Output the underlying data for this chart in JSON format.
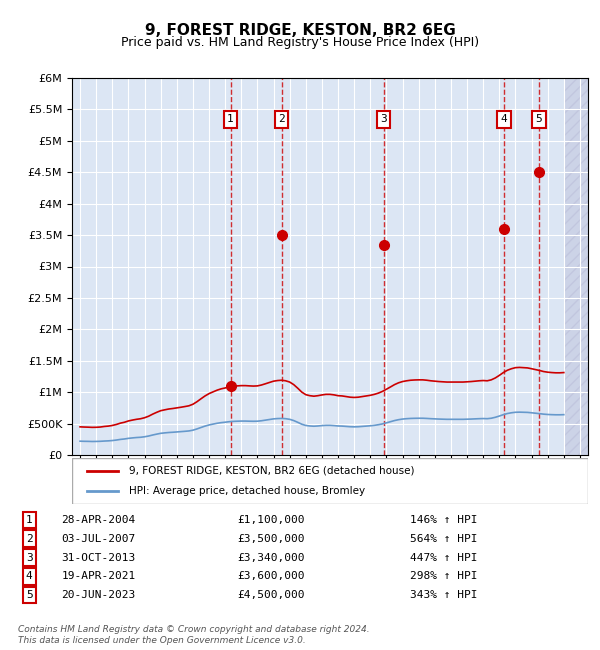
{
  "title": "9, FOREST RIDGE, KESTON, BR2 6EG",
  "subtitle": "Price paid vs. HM Land Registry's House Price Index (HPI)",
  "legend_line1": "9, FOREST RIDGE, KESTON, BR2 6EG (detached house)",
  "legend_line2": "HPI: Average price, detached house, Bromley",
  "footer": "Contains HM Land Registry data © Crown copyright and database right 2024.\nThis data is licensed under the Open Government Licence v3.0.",
  "xlim": [
    1994.5,
    2026.5
  ],
  "ylim": [
    0,
    6000000
  ],
  "yticks": [
    0,
    500000,
    1000000,
    1500000,
    2000000,
    2500000,
    3000000,
    3500000,
    4000000,
    4500000,
    5000000,
    5500000,
    6000000
  ],
  "ytick_labels": [
    "£0",
    "£500K",
    "£1M",
    "£1.5M",
    "£2M",
    "£2.5M",
    "£3M",
    "£3.5M",
    "£4M",
    "£4.5M",
    "£5M",
    "£5.5M",
    "£6M"
  ],
  "sale_years": [
    2004.33,
    2007.5,
    2013.83,
    2021.3,
    2023.46
  ],
  "sale_prices": [
    1100000,
    3500000,
    3340000,
    3600000,
    4500000
  ],
  "sale_labels": [
    "1",
    "2",
    "3",
    "4",
    "5"
  ],
  "sale_dates": [
    "28-APR-2004",
    "03-JUL-2007",
    "31-OCT-2013",
    "19-APR-2021",
    "20-JUN-2023"
  ],
  "sale_percents": [
    "146% ↑ HPI",
    "564% ↑ HPI",
    "447% ↑ HPI",
    "298% ↑ HPI",
    "343% ↑ HPI"
  ],
  "hpi_color": "#6699cc",
  "price_color": "#cc0000",
  "bg_color": "#dce6f4",
  "hatch_color": "#bbbbcc",
  "box_color": "#cc0000",
  "grid_color": "#ffffff",
  "future_start": 2025.0,
  "hpi_data": {
    "years": [
      1995,
      1995.25,
      1995.5,
      1995.75,
      1996,
      1996.25,
      1996.5,
      1996.75,
      1997,
      1997.25,
      1997.5,
      1997.75,
      1998,
      1998.25,
      1998.5,
      1998.75,
      1999,
      1999.25,
      1999.5,
      1999.75,
      2000,
      2000.25,
      2000.5,
      2000.75,
      2001,
      2001.25,
      2001.5,
      2001.75,
      2002,
      2002.25,
      2002.5,
      2002.75,
      2003,
      2003.25,
      2003.5,
      2003.75,
      2004,
      2004.25,
      2004.5,
      2004.75,
      2005,
      2005.25,
      2005.5,
      2005.75,
      2006,
      2006.25,
      2006.5,
      2006.75,
      2007,
      2007.25,
      2007.5,
      2007.75,
      2008,
      2008.25,
      2008.5,
      2008.75,
      2009,
      2009.25,
      2009.5,
      2009.75,
      2010,
      2010.25,
      2010.5,
      2010.75,
      2011,
      2011.25,
      2011.5,
      2011.75,
      2012,
      2012.25,
      2012.5,
      2012.75,
      2013,
      2013.25,
      2013.5,
      2013.75,
      2014,
      2014.25,
      2014.5,
      2014.75,
      2015,
      2015.25,
      2015.5,
      2015.75,
      2016,
      2016.25,
      2016.5,
      2016.75,
      2017,
      2017.25,
      2017.5,
      2017.75,
      2018,
      2018.25,
      2018.5,
      2018.75,
      2019,
      2019.25,
      2019.5,
      2019.75,
      2020,
      2020.25,
      2020.5,
      2020.75,
      2021,
      2021.25,
      2021.5,
      2021.75,
      2022,
      2022.25,
      2022.5,
      2022.75,
      2023,
      2023.25,
      2023.5,
      2023.75,
      2024,
      2024.25,
      2024.5,
      2024.75,
      2025
    ],
    "values": [
      220000,
      218000,
      217000,
      215000,
      216000,
      218000,
      222000,
      225000,
      230000,
      238000,
      248000,
      255000,
      265000,
      272000,
      278000,
      282000,
      290000,
      302000,
      318000,
      332000,
      345000,
      352000,
      358000,
      362000,
      367000,
      372000,
      377000,
      383000,
      395000,
      415000,
      438000,
      460000,
      478000,
      492000,
      505000,
      515000,
      522000,
      530000,
      535000,
      538000,
      540000,
      540000,
      538000,
      537000,
      538000,
      545000,
      555000,
      565000,
      575000,
      580000,
      582000,
      578000,
      568000,
      548000,
      520000,
      490000,
      470000,
      462000,
      458000,
      462000,
      468000,
      472000,
      472000,
      468000,
      462000,
      460000,
      455000,
      450000,
      448000,
      450000,
      455000,
      460000,
      465000,
      472000,
      482000,
      495000,
      512000,
      530000,
      548000,
      562000,
      572000,
      578000,
      582000,
      584000,
      585000,
      585000,
      582000,
      578000,
      575000,
      572000,
      570000,
      568000,
      568000,
      568000,
      568000,
      568000,
      570000,
      572000,
      575000,
      578000,
      580000,
      578000,
      585000,
      600000,
      620000,
      642000,
      660000,
      672000,
      680000,
      682000,
      680000,
      678000,
      672000,
      665000,
      658000,
      650000,
      645000,
      642000,
      640000,
      640000,
      642000
    ]
  },
  "property_hpi_data": {
    "years": [
      1995,
      1995.25,
      1995.5,
      1995.75,
      1996,
      1996.25,
      1996.5,
      1996.75,
      1997,
      1997.25,
      1997.5,
      1997.75,
      1998,
      1998.25,
      1998.5,
      1998.75,
      1999,
      1999.25,
      1999.5,
      1999.75,
      2000,
      2000.25,
      2000.5,
      2000.75,
      2001,
      2001.25,
      2001.5,
      2001.75,
      2002,
      2002.25,
      2002.5,
      2002.75,
      2003,
      2003.25,
      2003.5,
      2003.75,
      2004,
      2004.25,
      2004.5,
      2004.75,
      2005,
      2005.25,
      2005.5,
      2005.75,
      2006,
      2006.25,
      2006.5,
      2006.75,
      2007,
      2007.25,
      2007.5,
      2007.75,
      2008,
      2008.25,
      2008.5,
      2008.75,
      2009,
      2009.25,
      2009.5,
      2009.75,
      2010,
      2010.25,
      2010.5,
      2010.75,
      2011,
      2011.25,
      2011.5,
      2011.75,
      2012,
      2012.25,
      2012.5,
      2012.75,
      2013,
      2013.25,
      2013.5,
      2013.75,
      2014,
      2014.25,
      2014.5,
      2014.75,
      2015,
      2015.25,
      2015.5,
      2015.75,
      2016,
      2016.25,
      2016.5,
      2016.75,
      2017,
      2017.25,
      2017.5,
      2017.75,
      2018,
      2018.25,
      2018.5,
      2018.75,
      2019,
      2019.25,
      2019.5,
      2019.75,
      2020,
      2020.25,
      2020.5,
      2020.75,
      2021,
      2021.25,
      2021.5,
      2021.75,
      2022,
      2022.25,
      2022.5,
      2022.75,
      2023,
      2023.25,
      2023.5,
      2023.75,
      2024,
      2024.25,
      2024.5,
      2024.75,
      2025
    ],
    "values": [
      448000,
      445000,
      443000,
      440000,
      441000,
      445000,
      454000,
      460000,
      470000,
      486000,
      507000,
      521000,
      542000,
      556000,
      568000,
      577000,
      593000,
      617000,
      650000,
      679000,
      705000,
      719000,
      732000,
      740000,
      750000,
      760000,
      771000,
      783000,
      808000,
      848000,
      895000,
      940000,
      977000,
      1005000,
      1032000,
      1053000,
      1067000,
      1083000,
      1093000,
      1100000,
      1104000,
      1104000,
      1100000,
      1097000,
      1100000,
      1114000,
      1134000,
      1155000,
      1175000,
      1185000,
      1190000,
      1181000,
      1161000,
      1120000,
      1063000,
      1001000,
      960000,
      944000,
      936000,
      944000,
      956000,
      965000,
      965000,
      957000,
      944000,
      940000,
      930000,
      920000,
      916000,
      920000,
      930000,
      940000,
      950000,
      965000,
      985000,
      1012000,
      1047000,
      1083000,
      1120000,
      1149000,
      1169000,
      1181000,
      1190000,
      1194000,
      1196000,
      1196000,
      1190000,
      1181000,
      1175000,
      1169000,
      1165000,
      1161000,
      1161000,
      1161000,
      1161000,
      1161000,
      1165000,
      1169000,
      1175000,
      1181000,
      1185000,
      1181000,
      1196000,
      1226000,
      1267000,
      1312000,
      1349000,
      1373000,
      1390000,
      1394000,
      1390000,
      1386000,
      1373000,
      1359000,
      1345000,
      1328000,
      1318000,
      1312000,
      1308000,
      1308000,
      1312000
    ]
  }
}
